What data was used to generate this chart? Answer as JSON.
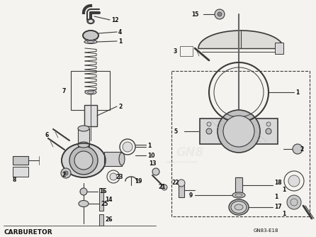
{
  "title": "CARBURETOR",
  "diagram_code": "GN83-E18",
  "bg_color": "#f5f3ef",
  "line_color": "#3a3a3a",
  "text_color": "#111111",
  "gray_fill": "#c8c8c8",
  "dark_fill": "#888888",
  "mid_fill": "#aaaaaa"
}
